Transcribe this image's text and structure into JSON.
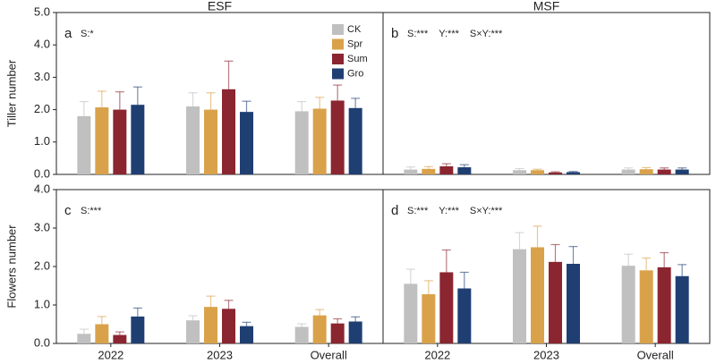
{
  "chart_data": [
    {
      "type": "bar",
      "title": "ESF",
      "panel_label": "a",
      "ylabel": "Tiller number",
      "annotations": [
        "S:*"
      ],
      "categories": [
        null,
        null,
        null
      ],
      "ylim": [
        0,
        5
      ],
      "yticks": [
        {
          "value": 0,
          "label": "0.0"
        },
        {
          "value": 1,
          "label": "1.0"
        },
        {
          "value": 2,
          "label": "2.0"
        },
        {
          "value": 3,
          "label": "3.0"
        },
        {
          "value": 4,
          "label": "4.0"
        },
        {
          "value": 5,
          "label": "5.0"
        }
      ],
      "legend": "upper right",
      "series": [
        {
          "name": "CK",
          "color": "#c0c0c0",
          "values": [
            1.8,
            2.1,
            1.95
          ],
          "errors": [
            0.45,
            0.42,
            0.3
          ]
        },
        {
          "name": "Spr",
          "color": "#d9a24a",
          "values": [
            2.07,
            2.0,
            2.03
          ],
          "errors": [
            0.5,
            0.52,
            0.35
          ]
        },
        {
          "name": "Sum",
          "color": "#8b2530",
          "values": [
            2.0,
            2.63,
            2.28
          ],
          "errors": [
            0.55,
            0.87,
            0.48
          ]
        },
        {
          "name": "Gro",
          "color": "#1f3f73",
          "values": [
            2.15,
            1.93,
            2.05
          ],
          "errors": [
            0.55,
            0.33,
            0.3
          ]
        }
      ]
    },
    {
      "type": "bar",
      "title": "MSF",
      "panel_label": "b",
      "annotations": [
        "S:***",
        "Y:***",
        "S×Y:***"
      ],
      "categories": [
        null,
        null,
        null
      ],
      "ylim": [
        0,
        5
      ],
      "series": [
        {
          "color": "#c0c0c0",
          "values": [
            0.15,
            0.13,
            0.15
          ],
          "errors": [
            0.08,
            0.05,
            0.05
          ]
        },
        {
          "color": "#d9a24a",
          "values": [
            0.17,
            0.13,
            0.16
          ],
          "errors": [
            0.07,
            0.03,
            0.05
          ]
        },
        {
          "color": "#8b2530",
          "values": [
            0.25,
            0.06,
            0.15
          ],
          "errors": [
            0.08,
            0.02,
            0.05
          ]
        },
        {
          "color": "#1f3f73",
          "values": [
            0.22,
            0.07,
            0.15
          ],
          "errors": [
            0.08,
            0.02,
            0.05
          ]
        }
      ]
    },
    {
      "type": "bar",
      "panel_label": "c",
      "ylabel": "Flowers number",
      "annotations": [
        "S:***"
      ],
      "categories": [
        "2022",
        "2023",
        "Overall"
      ],
      "ylim": [
        0,
        4
      ],
      "yticks": [
        {
          "value": 0,
          "label": "0.0"
        },
        {
          "value": 1,
          "label": "1.0"
        },
        {
          "value": 2,
          "label": "2.0"
        },
        {
          "value": 3,
          "label": "3.0"
        },
        {
          "value": 4,
          "label": "4.0"
        }
      ],
      "series": [
        {
          "color": "#c0c0c0",
          "values": [
            0.25,
            0.6,
            0.43
          ],
          "errors": [
            0.12,
            0.12,
            0.08
          ]
        },
        {
          "color": "#d9a24a",
          "values": [
            0.5,
            0.95,
            0.73
          ],
          "errors": [
            0.2,
            0.28,
            0.15
          ]
        },
        {
          "color": "#8b2530",
          "values": [
            0.22,
            0.9,
            0.52
          ],
          "errors": [
            0.08,
            0.22,
            0.12
          ]
        },
        {
          "color": "#1f3f73",
          "values": [
            0.7,
            0.45,
            0.57
          ],
          "errors": [
            0.22,
            0.1,
            0.12
          ]
        }
      ]
    },
    {
      "type": "bar",
      "panel_label": "d",
      "annotations": [
        "S:***",
        "Y:***",
        "S×Y:***"
      ],
      "categories": [
        "2022",
        "2023",
        "Overall"
      ],
      "ylim": [
        0,
        4
      ],
      "series": [
        {
          "color": "#c0c0c0",
          "values": [
            1.55,
            2.45,
            2.02
          ],
          "errors": [
            0.38,
            0.43,
            0.3
          ]
        },
        {
          "color": "#d9a24a",
          "values": [
            1.28,
            2.5,
            1.9
          ],
          "errors": [
            0.35,
            0.55,
            0.32
          ]
        },
        {
          "color": "#8b2530",
          "values": [
            1.85,
            2.12,
            1.98
          ],
          "errors": [
            0.58,
            0.45,
            0.38
          ]
        },
        {
          "color": "#1f3f73",
          "values": [
            1.43,
            2.07,
            1.75
          ],
          "errors": [
            0.42,
            0.45,
            0.3
          ]
        }
      ]
    }
  ]
}
